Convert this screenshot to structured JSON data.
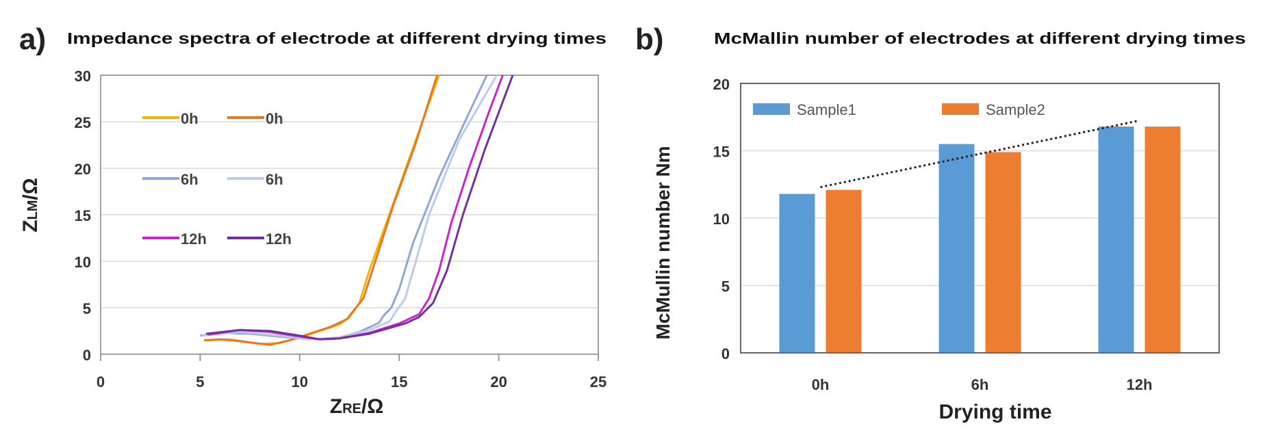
{
  "chart_data": [
    {
      "type": "line",
      "panel_label": "a)",
      "title": "Impedance spectra of electrode at different drying times",
      "xlabel": {
        "main": "Z",
        "sub": "RE",
        "unit": "/Ω"
      },
      "ylabel": {
        "main": "Z",
        "sub": "LM",
        "unit": "/Ω"
      },
      "xlim": [
        0,
        25
      ],
      "ylim": [
        0,
        30
      ],
      "xticks": [
        "0",
        "5",
        "10",
        "15",
        "20",
        "25"
      ],
      "yticks": [
        "0",
        "5",
        "10",
        "15",
        "20",
        "25",
        "30"
      ],
      "grid": "horizontal",
      "legend": "upper-left, two columns",
      "series": [
        {
          "name": "0h",
          "color": "#F5B300",
          "points": [
            [
              5.3,
              1.5
            ],
            [
              6.5,
              1.6
            ],
            [
              8,
              1.1
            ],
            [
              9,
              1.2
            ],
            [
              10,
              1.8
            ],
            [
              11,
              2.5
            ],
            [
              12,
              3.2
            ],
            [
              12.5,
              4
            ],
            [
              13,
              5.5
            ],
            [
              13.5,
              9
            ],
            [
              14.5,
              15
            ],
            [
              15.5,
              21
            ],
            [
              16.5,
              27
            ],
            [
              17,
              30
            ]
          ]
        },
        {
          "name": "0h",
          "color": "#E87722",
          "points": [
            [
              5.2,
              1.5
            ],
            [
              6,
              1.6
            ],
            [
              7,
              1.4
            ],
            [
              8.5,
              1.0
            ],
            [
              9.5,
              1.5
            ],
            [
              10.5,
              2.2
            ],
            [
              11.5,
              2.9
            ],
            [
              12.4,
              3.8
            ],
            [
              12.6,
              4.4
            ],
            [
              13.2,
              6
            ],
            [
              13.8,
              10
            ],
            [
              14.7,
              16
            ],
            [
              15.8,
              22.5
            ],
            [
              16.9,
              30
            ]
          ]
        },
        {
          "name": "6h",
          "color": "#8FA6D9",
          "points": [
            [
              5,
              2
            ],
            [
              6,
              2.3
            ],
            [
              7.5,
              2.2
            ],
            [
              9,
              1.9
            ],
            [
              10.5,
              1.6
            ],
            [
              12,
              1.8
            ],
            [
              13,
              2.4
            ],
            [
              14,
              3.4
            ],
            [
              14.2,
              4.1
            ],
            [
              14.6,
              5
            ],
            [
              15,
              7
            ],
            [
              15.7,
              12
            ],
            [
              17,
              19
            ],
            [
              18.3,
              25
            ],
            [
              19.4,
              30
            ]
          ]
        },
        {
          "name": "6h",
          "color": "#BCCBEA",
          "points": [
            [
              5.1,
              2
            ],
            [
              7,
              2.4
            ],
            [
              9,
              2.0
            ],
            [
              10.5,
              1.6
            ],
            [
              12,
              1.8
            ],
            [
              13.5,
              2.6
            ],
            [
              14.5,
              3.5
            ],
            [
              14.8,
              4.5
            ],
            [
              15.3,
              6
            ],
            [
              15.7,
              9
            ],
            [
              16.5,
              15
            ],
            [
              18,
              23
            ],
            [
              19.9,
              30
            ]
          ]
        },
        {
          "name": "12h",
          "color": "#CC22CC",
          "points": [
            [
              5.4,
              2.1
            ],
            [
              7,
              2.6
            ],
            [
              8.5,
              2.4
            ],
            [
              10,
              1.9
            ],
            [
              11,
              1.6
            ],
            [
              12,
              1.7
            ],
            [
              13.5,
              2.3
            ],
            [
              15,
              3.3
            ],
            [
              16,
              4.3
            ],
            [
              16.5,
              6
            ],
            [
              17,
              9
            ],
            [
              17.6,
              14
            ],
            [
              18.5,
              20
            ],
            [
              19.5,
              26
            ],
            [
              20.2,
              30
            ]
          ]
        },
        {
          "name": "12h",
          "color": "#7030A0",
          "points": [
            [
              5.3,
              2.2
            ],
            [
              7,
              2.6
            ],
            [
              8.5,
              2.5
            ],
            [
              10,
              2.0
            ],
            [
              11,
              1.6
            ],
            [
              12,
              1.7
            ],
            [
              13.5,
              2.2
            ],
            [
              15.3,
              3.3
            ],
            [
              16,
              4
            ],
            [
              16.7,
              5.5
            ],
            [
              17.4,
              9
            ],
            [
              18.2,
              15
            ],
            [
              19.3,
              22
            ],
            [
              20.7,
              30
            ]
          ]
        }
      ]
    },
    {
      "type": "bar",
      "panel_label": "b)",
      "title": "McMallin number of electrodes at different drying times",
      "xlabel": "Drying time",
      "ylabel": "McMullin number Nm",
      "categories": [
        "0h",
        "6h",
        "12h"
      ],
      "ylim": [
        0,
        20
      ],
      "yticks": [
        "0",
        "5",
        "10",
        "15",
        "20"
      ],
      "grid": "horizontal",
      "legend": "top-left, horizontal",
      "series": [
        {
          "name": "Sample1",
          "color": "#5B9BD5",
          "values": [
            11.8,
            15.5,
            16.8
          ]
        },
        {
          "name": "Sample2",
          "color": "#ED7D31",
          "values": [
            12.1,
            14.9,
            16.8
          ]
        }
      ],
      "trendline": {
        "style": "dotted",
        "color": "#222222",
        "from": 12.3,
        "to": 17.2
      }
    }
  ]
}
